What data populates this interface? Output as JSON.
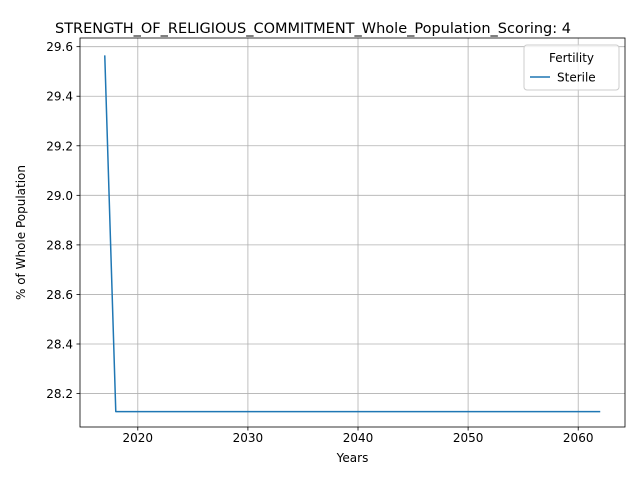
{
  "chart_data": {
    "type": "line",
    "title": "STRENGTH_OF_RELIGIOUS_COMMITMENT_Whole_Population_Scoring: 4",
    "xlabel": "Years",
    "ylabel": "% of Whole Population",
    "xlim": [
      2014.75,
      2064.25
    ],
    "ylim": [
      28.065,
      29.635
    ],
    "xticks": [
      2020,
      2030,
      2040,
      2050,
      2060
    ],
    "yticks": [
      28.2,
      28.4,
      28.6,
      28.8,
      29.0,
      29.2,
      29.4,
      29.6
    ],
    "grid": true,
    "legend": {
      "title": "Fertility",
      "placement": "top-right"
    },
    "series": [
      {
        "name": "Sterile",
        "color": "#1f77b4",
        "x": [
          2017,
          2018,
          2019,
          2020,
          2021,
          2022,
          2023,
          2024,
          2025,
          2026,
          2027,
          2028,
          2029,
          2030,
          2031,
          2032,
          2033,
          2034,
          2035,
          2036,
          2037,
          2038,
          2039,
          2040,
          2041,
          2042,
          2043,
          2044,
          2045,
          2046,
          2047,
          2048,
          2049,
          2050,
          2051,
          2052,
          2053,
          2054,
          2055,
          2056,
          2057,
          2058,
          2059,
          2060,
          2061,
          2062
        ],
        "y": [
          29.565,
          28.127,
          28.127,
          28.127,
          28.127,
          28.127,
          28.127,
          28.127,
          28.127,
          28.127,
          28.127,
          28.127,
          28.127,
          28.127,
          28.127,
          28.127,
          28.127,
          28.127,
          28.127,
          28.127,
          28.127,
          28.127,
          28.127,
          28.127,
          28.127,
          28.127,
          28.127,
          28.127,
          28.127,
          28.127,
          28.127,
          28.127,
          28.127,
          28.127,
          28.127,
          28.127,
          28.127,
          28.127,
          28.127,
          28.127,
          28.127,
          28.127,
          28.127,
          28.127,
          28.127,
          28.127
        ]
      }
    ]
  }
}
